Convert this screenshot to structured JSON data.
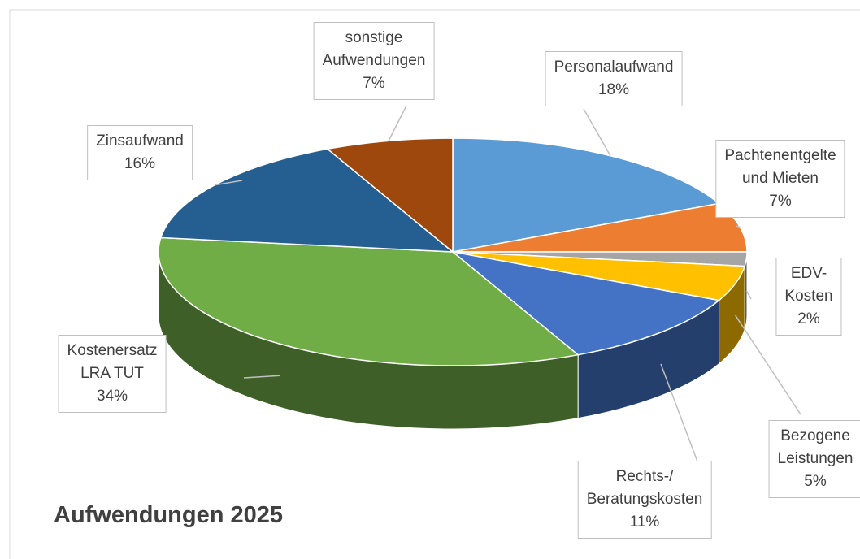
{
  "chart_data": {
    "type": "pie",
    "title": "Aufwendungen 2025",
    "categories": [
      "Personalaufwand",
      "Pachtenentgelte\nund Mieten",
      "EDV-Kosten",
      "Bezogene\nLeistungen",
      "Rechts-/\nBeratungskosten",
      "Kostenersatz\nLRA TUT",
      "Zinsaufwand",
      "sonstige\nAufwendungen"
    ],
    "values": [
      18,
      7,
      2,
      5,
      11,
      34,
      16,
      7
    ],
    "value_labels": [
      "18%",
      "7%",
      "2%",
      "5%",
      "11%",
      "34%",
      "16%",
      "7%"
    ],
    "colors": [
      "#5b9bd5",
      "#ed7d31",
      "#a5a5a5",
      "#ffc000",
      "#4472c4",
      "#70ad47",
      "#255e91",
      "#9e480e"
    ]
  }
}
